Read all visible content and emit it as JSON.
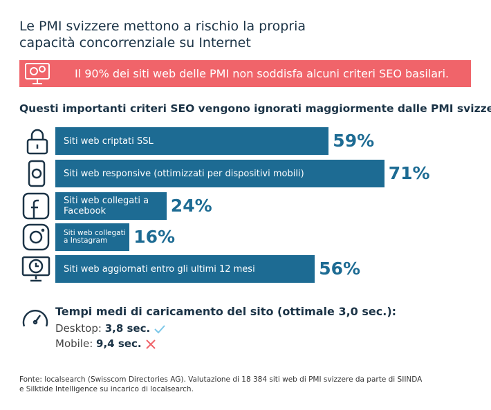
{
  "chart_data": {
    "type": "bar",
    "title": "Le PMI svizzere mettono a rischio la propria capacità concorrenziale su Internet",
    "banner": "Il 90% dei siti web delle PMI non soddisfa alcuni criteri SEO basilari.",
    "subtitle": "Questi importanti criteri SEO vengono ignorati maggiormente dalle PMI svizzere:",
    "categories": [
      "Siti web criptati SSL",
      "Siti web responsive (ottimizzati per dispositivi mobili)",
      "Siti web collegati a Facebook",
      "Siti web collegati a Instagram",
      "Siti web aggiornati entro gli ultimi 12 mesi"
    ],
    "values": [
      59,
      71,
      24,
      16,
      56
    ],
    "value_labels": [
      "59%",
      "71%",
      "24%",
      "16%",
      "56%"
    ],
    "color": "#1d6b93",
    "load_times": {
      "title": "Tempi medi di caricamento del sito (ottimale 3,0 sec.):",
      "items": [
        {
          "label": "Desktop:",
          "value": "3,8 sec."
        },
        {
          "label": "Mobile:",
          "value": "9,4 sec."
        }
      ]
    },
    "source": [
      "Fonte: localsearch (Swisscom Directories AG). Valutazione di 18 384 siti web di PMI svizzere da parte di SIINDA",
      "e Silktide Intelligence su incarico di localsearch."
    ]
  }
}
